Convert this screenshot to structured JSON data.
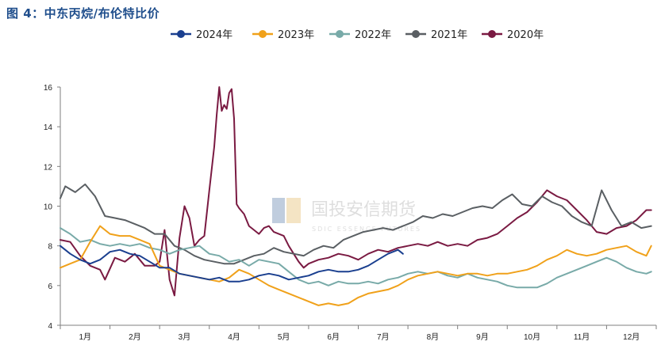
{
  "figure_title": "图 4：中东丙烷/布伦特比价",
  "watermark": {
    "cn": "国投安信期货",
    "en": "SDIC ESSENCE FUTURES"
  },
  "colors": {
    "title": "#1f4e8c",
    "axis": "#7f7f7f"
  },
  "chart_data": {
    "type": "line",
    "title": "",
    "xlabel": "",
    "ylabel": "",
    "ylim": [
      4,
      16
    ],
    "yticks": [
      "4",
      "6",
      "8",
      "10",
      "12",
      "14",
      "16"
    ],
    "categories": [
      "1月",
      "2月",
      "3月",
      "4月",
      "5月",
      "6月",
      "7月",
      "8月",
      "9月",
      "10月",
      "11月",
      "12月"
    ],
    "legend_position": "top",
    "grid": false,
    "x_unit": "month (1.0 = start of January, 13.0 = end of December)",
    "series": [
      {
        "name": "2024年",
        "color": "#1a3f8f",
        "points": [
          [
            1.0,
            8.0
          ],
          [
            1.2,
            7.6
          ],
          [
            1.4,
            7.3
          ],
          [
            1.6,
            7.1
          ],
          [
            1.8,
            7.3
          ],
          [
            2.0,
            7.7
          ],
          [
            2.2,
            7.8
          ],
          [
            2.4,
            7.6
          ],
          [
            2.6,
            7.5
          ],
          [
            2.8,
            7.2
          ],
          [
            3.0,
            6.9
          ],
          [
            3.2,
            6.9
          ],
          [
            3.4,
            6.6
          ],
          [
            3.6,
            6.5
          ],
          [
            3.8,
            6.4
          ],
          [
            4.0,
            6.3
          ],
          [
            4.2,
            6.4
          ],
          [
            4.4,
            6.2
          ],
          [
            4.6,
            6.2
          ],
          [
            4.8,
            6.3
          ],
          [
            5.0,
            6.5
          ],
          [
            5.2,
            6.6
          ],
          [
            5.4,
            6.5
          ],
          [
            5.6,
            6.3
          ],
          [
            5.8,
            6.4
          ],
          [
            6.0,
            6.5
          ],
          [
            6.2,
            6.7
          ],
          [
            6.4,
            6.8
          ],
          [
            6.6,
            6.7
          ],
          [
            6.8,
            6.7
          ],
          [
            7.0,
            6.8
          ],
          [
            7.2,
            7.0
          ],
          [
            7.4,
            7.3
          ],
          [
            7.6,
            7.6
          ],
          [
            7.8,
            7.8
          ],
          [
            7.9,
            7.6
          ]
        ]
      },
      {
        "name": "2023年",
        "color": "#f0a11a",
        "points": [
          [
            1.0,
            6.9
          ],
          [
            1.2,
            7.1
          ],
          [
            1.4,
            7.3
          ],
          [
            1.6,
            8.2
          ],
          [
            1.8,
            9.0
          ],
          [
            2.0,
            8.6
          ],
          [
            2.2,
            8.5
          ],
          [
            2.4,
            8.5
          ],
          [
            2.6,
            8.3
          ],
          [
            2.8,
            8.1
          ],
          [
            3.0,
            7.0
          ],
          [
            3.2,
            6.8
          ],
          [
            3.4,
            6.6
          ],
          [
            3.6,
            6.5
          ],
          [
            3.8,
            6.4
          ],
          [
            4.0,
            6.3
          ],
          [
            4.2,
            6.2
          ],
          [
            4.4,
            6.4
          ],
          [
            4.6,
            6.8
          ],
          [
            4.8,
            6.6
          ],
          [
            5.0,
            6.3
          ],
          [
            5.2,
            6.0
          ],
          [
            5.4,
            5.8
          ],
          [
            5.6,
            5.6
          ],
          [
            5.8,
            5.4
          ],
          [
            6.0,
            5.2
          ],
          [
            6.2,
            5.0
          ],
          [
            6.4,
            5.1
          ],
          [
            6.6,
            5.0
          ],
          [
            6.8,
            5.1
          ],
          [
            7.0,
            5.4
          ],
          [
            7.2,
            5.6
          ],
          [
            7.4,
            5.7
          ],
          [
            7.6,
            5.8
          ],
          [
            7.8,
            6.0
          ],
          [
            8.0,
            6.3
          ],
          [
            8.2,
            6.5
          ],
          [
            8.4,
            6.6
          ],
          [
            8.6,
            6.7
          ],
          [
            8.8,
            6.6
          ],
          [
            9.0,
            6.5
          ],
          [
            9.2,
            6.6
          ],
          [
            9.4,
            6.6
          ],
          [
            9.6,
            6.5
          ],
          [
            9.8,
            6.6
          ],
          [
            10.0,
            6.6
          ],
          [
            10.2,
            6.7
          ],
          [
            10.4,
            6.8
          ],
          [
            10.6,
            7.0
          ],
          [
            10.8,
            7.3
          ],
          [
            11.0,
            7.5
          ],
          [
            11.2,
            7.8
          ],
          [
            11.4,
            7.6
          ],
          [
            11.6,
            7.5
          ],
          [
            11.8,
            7.6
          ],
          [
            12.0,
            7.8
          ],
          [
            12.2,
            7.9
          ],
          [
            12.4,
            8.0
          ],
          [
            12.6,
            7.7
          ],
          [
            12.8,
            7.5
          ],
          [
            12.9,
            8.0
          ]
        ]
      },
      {
        "name": "2022年",
        "color": "#78aaa8",
        "points": [
          [
            1.0,
            8.9
          ],
          [
            1.2,
            8.6
          ],
          [
            1.4,
            8.2
          ],
          [
            1.6,
            8.3
          ],
          [
            1.8,
            8.1
          ],
          [
            2.0,
            8.0
          ],
          [
            2.2,
            8.1
          ],
          [
            2.4,
            8.0
          ],
          [
            2.6,
            8.1
          ],
          [
            2.8,
            7.9
          ],
          [
            3.0,
            7.8
          ],
          [
            3.2,
            7.6
          ],
          [
            3.4,
            7.8
          ],
          [
            3.6,
            7.9
          ],
          [
            3.8,
            8.0
          ],
          [
            4.0,
            7.6
          ],
          [
            4.2,
            7.5
          ],
          [
            4.4,
            7.2
          ],
          [
            4.6,
            7.3
          ],
          [
            4.8,
            7.0
          ],
          [
            5.0,
            7.3
          ],
          [
            5.2,
            7.2
          ],
          [
            5.4,
            7.1
          ],
          [
            5.6,
            6.7
          ],
          [
            5.8,
            6.3
          ],
          [
            6.0,
            6.1
          ],
          [
            6.2,
            6.2
          ],
          [
            6.4,
            6.0
          ],
          [
            6.6,
            6.2
          ],
          [
            6.8,
            6.1
          ],
          [
            7.0,
            6.1
          ],
          [
            7.2,
            6.2
          ],
          [
            7.4,
            6.1
          ],
          [
            7.6,
            6.3
          ],
          [
            7.8,
            6.4
          ],
          [
            8.0,
            6.6
          ],
          [
            8.2,
            6.7
          ],
          [
            8.4,
            6.6
          ],
          [
            8.6,
            6.7
          ],
          [
            8.8,
            6.5
          ],
          [
            9.0,
            6.4
          ],
          [
            9.2,
            6.6
          ],
          [
            9.4,
            6.4
          ],
          [
            9.6,
            6.3
          ],
          [
            9.8,
            6.2
          ],
          [
            10.0,
            6.0
          ],
          [
            10.2,
            5.9
          ],
          [
            10.4,
            5.9
          ],
          [
            10.6,
            5.9
          ],
          [
            10.8,
            6.1
          ],
          [
            11.0,
            6.4
          ],
          [
            11.2,
            6.6
          ],
          [
            11.4,
            6.8
          ],
          [
            11.6,
            7.0
          ],
          [
            11.8,
            7.2
          ],
          [
            12.0,
            7.4
          ],
          [
            12.2,
            7.2
          ],
          [
            12.4,
            6.9
          ],
          [
            12.6,
            6.7
          ],
          [
            12.8,
            6.6
          ],
          [
            12.9,
            6.7
          ]
        ]
      },
      {
        "name": "2021年",
        "color": "#5a5f63",
        "points": [
          [
            1.0,
            10.4
          ],
          [
            1.1,
            11.0
          ],
          [
            1.3,
            10.7
          ],
          [
            1.5,
            11.1
          ],
          [
            1.7,
            10.5
          ],
          [
            1.9,
            9.5
          ],
          [
            2.1,
            9.4
          ],
          [
            2.3,
            9.3
          ],
          [
            2.5,
            9.1
          ],
          [
            2.7,
            8.9
          ],
          [
            2.9,
            8.6
          ],
          [
            3.1,
            8.6
          ],
          [
            3.3,
            8.0
          ],
          [
            3.5,
            7.8
          ],
          [
            3.7,
            7.5
          ],
          [
            3.9,
            7.3
          ],
          [
            4.1,
            7.2
          ],
          [
            4.3,
            7.1
          ],
          [
            4.5,
            7.1
          ],
          [
            4.7,
            7.3
          ],
          [
            4.9,
            7.5
          ],
          [
            5.1,
            7.6
          ],
          [
            5.3,
            7.9
          ],
          [
            5.5,
            7.7
          ],
          [
            5.7,
            7.6
          ],
          [
            5.9,
            7.5
          ],
          [
            6.1,
            7.8
          ],
          [
            6.3,
            8.0
          ],
          [
            6.5,
            7.9
          ],
          [
            6.7,
            8.3
          ],
          [
            6.9,
            8.5
          ],
          [
            7.1,
            8.7
          ],
          [
            7.3,
            8.8
          ],
          [
            7.5,
            8.9
          ],
          [
            7.7,
            8.8
          ],
          [
            7.9,
            9.0
          ],
          [
            8.1,
            9.2
          ],
          [
            8.3,
            9.5
          ],
          [
            8.5,
            9.4
          ],
          [
            8.7,
            9.6
          ],
          [
            8.9,
            9.5
          ],
          [
            9.1,
            9.7
          ],
          [
            9.3,
            9.9
          ],
          [
            9.5,
            10.0
          ],
          [
            9.7,
            9.9
          ],
          [
            9.9,
            10.3
          ],
          [
            10.1,
            10.6
          ],
          [
            10.3,
            10.1
          ],
          [
            10.5,
            10.0
          ],
          [
            10.7,
            10.5
          ],
          [
            10.9,
            10.2
          ],
          [
            11.1,
            10.0
          ],
          [
            11.3,
            9.5
          ],
          [
            11.5,
            9.2
          ],
          [
            11.7,
            9.0
          ],
          [
            11.9,
            10.8
          ],
          [
            12.1,
            9.8
          ],
          [
            12.3,
            9.0
          ],
          [
            12.5,
            9.2
          ],
          [
            12.7,
            8.9
          ],
          [
            12.9,
            9.0
          ]
        ]
      },
      {
        "name": "2020年",
        "color": "#7a1a42",
        "points": [
          [
            1.0,
            8.3
          ],
          [
            1.2,
            8.2
          ],
          [
            1.4,
            7.5
          ],
          [
            1.6,
            7.0
          ],
          [
            1.8,
            6.8
          ],
          [
            1.9,
            6.3
          ],
          [
            2.1,
            7.4
          ],
          [
            2.3,
            7.2
          ],
          [
            2.5,
            7.6
          ],
          [
            2.7,
            7.0
          ],
          [
            2.9,
            7.0
          ],
          [
            3.0,
            7.2
          ],
          [
            3.1,
            8.8
          ],
          [
            3.2,
            6.3
          ],
          [
            3.3,
            5.5
          ],
          [
            3.4,
            8.4
          ],
          [
            3.5,
            10.0
          ],
          [
            3.6,
            9.4
          ],
          [
            3.7,
            8.0
          ],
          [
            3.8,
            8.3
          ],
          [
            3.9,
            8.5
          ],
          [
            4.0,
            10.8
          ],
          [
            4.1,
            13.0
          ],
          [
            4.15,
            14.6
          ],
          [
            4.2,
            16.0
          ],
          [
            4.25,
            14.8
          ],
          [
            4.3,
            15.1
          ],
          [
            4.35,
            14.9
          ],
          [
            4.4,
            15.7
          ],
          [
            4.45,
            15.9
          ],
          [
            4.5,
            14.4
          ],
          [
            4.55,
            10.1
          ],
          [
            4.6,
            9.9
          ],
          [
            4.7,
            9.6
          ],
          [
            4.8,
            9.0
          ],
          [
            4.9,
            8.8
          ],
          [
            5.0,
            8.6
          ],
          [
            5.1,
            8.9
          ],
          [
            5.2,
            9.0
          ],
          [
            5.3,
            8.7
          ],
          [
            5.5,
            8.5
          ],
          [
            5.6,
            8.0
          ],
          [
            5.7,
            7.6
          ],
          [
            5.8,
            7.2
          ],
          [
            5.9,
            6.9
          ],
          [
            6.0,
            7.1
          ],
          [
            6.2,
            7.3
          ],
          [
            6.4,
            7.4
          ],
          [
            6.6,
            7.6
          ],
          [
            6.8,
            7.5
          ],
          [
            7.0,
            7.3
          ],
          [
            7.2,
            7.6
          ],
          [
            7.4,
            7.8
          ],
          [
            7.6,
            7.7
          ],
          [
            7.8,
            7.9
          ],
          [
            8.0,
            8.0
          ],
          [
            8.2,
            8.1
          ],
          [
            8.4,
            8.0
          ],
          [
            8.6,
            8.2
          ],
          [
            8.8,
            8.0
          ],
          [
            9.0,
            8.1
          ],
          [
            9.2,
            8.0
          ],
          [
            9.4,
            8.3
          ],
          [
            9.6,
            8.4
          ],
          [
            9.8,
            8.6
          ],
          [
            10.0,
            9.0
          ],
          [
            10.2,
            9.4
          ],
          [
            10.4,
            9.7
          ],
          [
            10.6,
            10.2
          ],
          [
            10.8,
            10.8
          ],
          [
            11.0,
            10.5
          ],
          [
            11.2,
            10.3
          ],
          [
            11.4,
            9.8
          ],
          [
            11.6,
            9.3
          ],
          [
            11.8,
            8.7
          ],
          [
            12.0,
            8.6
          ],
          [
            12.2,
            8.9
          ],
          [
            12.4,
            9.0
          ],
          [
            12.6,
            9.3
          ],
          [
            12.8,
            9.8
          ],
          [
            12.9,
            9.8
          ]
        ]
      }
    ]
  }
}
